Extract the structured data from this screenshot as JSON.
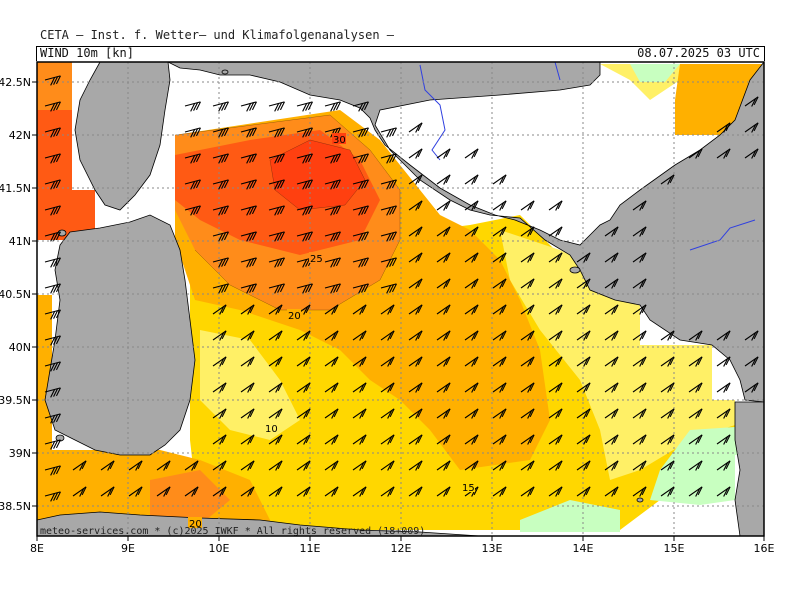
{
  "header": {
    "institute": "CETA — Inst. f. Wetter— und Klimafolgenanalysen —",
    "variable": "WIND 10m [kn]",
    "valid_time": "08.07.2025 03 UTC"
  },
  "footer": {
    "copyright": "meteo-services.com * (c)2025 IWKF * All rights reserved (18+009)"
  },
  "axes": {
    "lon_labels": [
      "8E",
      "9E",
      "10E",
      "11E",
      "12E",
      "13E",
      "14E",
      "15E",
      "16E"
    ],
    "lat_labels": [
      "42.5N",
      "42N",
      "41.5N",
      "41N",
      "40.5N",
      "40N",
      "39.5N",
      "39N",
      "38.5N"
    ]
  },
  "contour_labels": [
    "30",
    "25",
    "20",
    "10",
    "15",
    "20"
  ],
  "colors": {
    "land": "#a8a8a8",
    "sea": "#ffffff",
    "wind_5_10": "#fff066",
    "wind_10_15": "#ffd700",
    "wind_15_20": "#ffb000",
    "wind_20_25": "#ff8c1a",
    "wind_25_30": "#ff5a14",
    "wind_30_plus": "#ff4010",
    "calm": "#c8ffc0",
    "rivers": "#3040e0"
  }
}
